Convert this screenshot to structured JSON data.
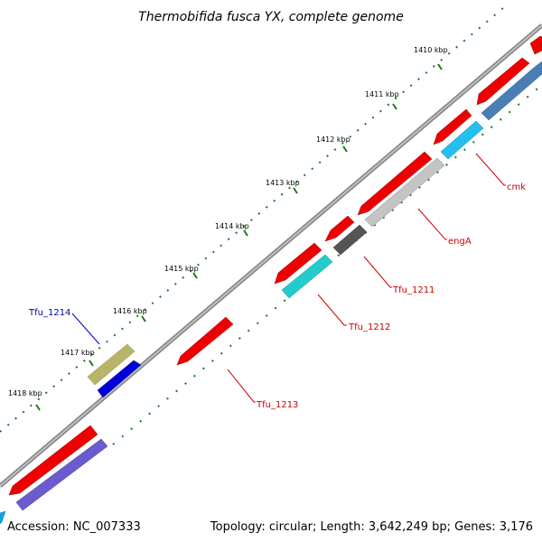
{
  "title": "Thermobifida fusca YX, complete genome",
  "footer": {
    "accession": "Accession: NC_007333",
    "summary": "Topology: circular; Length: 3,642,249 bp; Genes: 3,176"
  },
  "ticks": [
    "1410 kbp",
    "1411 kbp",
    "1412 kbp",
    "1413 kbp",
    "1414 kbp",
    "1415 kbp",
    "1416 kbp",
    "1417 kbp",
    "1418 kbp"
  ],
  "genes": {
    "cmk": "cmk",
    "engA": "engA",
    "tfu1211": "Tfu_1211",
    "tfu1212": "Tfu_1212",
    "tfu1213": "Tfu_1213",
    "tfu1214": "Tfu_1214"
  },
  "colors": {
    "backbone": "#777777",
    "tick": "#1a7a1a",
    "gene_red": "#ee0000",
    "label_red": "#cc0000",
    "label_blue": "#0000aa"
  }
}
